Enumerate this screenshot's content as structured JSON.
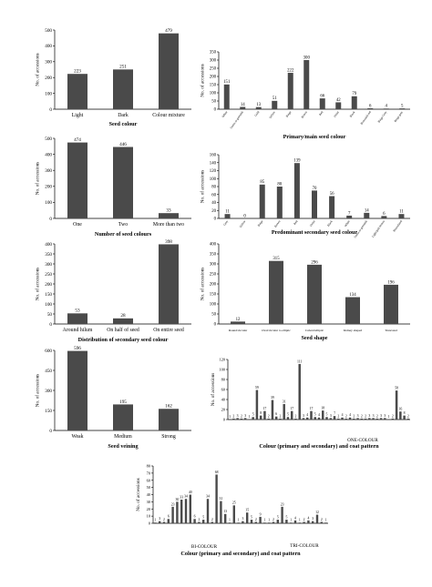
{
  "chart_data": [
    {
      "id": "c1",
      "type": "bar",
      "categories": [
        "Light",
        "Dark",
        "Colour mixture"
      ],
      "values": [
        223,
        251,
        479
      ],
      "xlabel": "Seed colour",
      "ylabel": "No. of accessions",
      "ylim": [
        0,
        500
      ],
      "yticks": [
        0,
        100,
        200,
        300,
        400,
        500
      ],
      "show_labels": true
    },
    {
      "id": "c2",
      "type": "bar",
      "categories": [
        "White",
        "Green or greenish",
        "Gold",
        "Yellow",
        "Beige",
        "Brown",
        "Red",
        "Violet",
        "Black",
        "Brownish red",
        "Beige Grey",
        "Beige grey"
      ],
      "values": [
        151,
        14,
        13,
        51,
        222,
        300,
        66,
        42,
        79,
        6,
        4,
        5
      ],
      "xlabel": "Primary/main seed colour",
      "ylabel": "No. of accessions",
      "ylim": [
        0,
        350
      ],
      "yticks": [
        0,
        50,
        100,
        150,
        200,
        250,
        300,
        350
      ],
      "show_labels": true
    },
    {
      "id": "c3",
      "type": "bar",
      "categories": [
        "One",
        "Two",
        "More than two"
      ],
      "values": [
        474,
        446,
        33
      ],
      "xlabel": "Number of seed colours",
      "ylabel": "No. of accessions",
      "ylim": [
        0,
        500
      ],
      "yticks": [
        0,
        100,
        200,
        300,
        400,
        500
      ],
      "show_labels": true
    },
    {
      "id": "c4",
      "type": "bar",
      "categories": [
        "Grey",
        "Yellow",
        "Beige",
        "Brown",
        "Red",
        "Violet",
        "Black",
        "White",
        "Green or greenish",
        "Light/pale brown",
        "Reticulated"
      ],
      "values": [
        11,
        0,
        85,
        80,
        139,
        70,
        56,
        7,
        14,
        6,
        11
      ],
      "xlabel": "Predominant secondary seed colour",
      "ylabel": "No. of accessions",
      "ylim": [
        0,
        160
      ],
      "yticks": [
        0,
        20,
        40,
        60,
        80,
        100,
        120,
        140,
        160
      ],
      "show_labels": true
    },
    {
      "id": "c5",
      "type": "bar",
      "categories": [
        "Around hilum",
        "On half of seed",
        "On entire seed"
      ],
      "values": [
        53,
        28,
        398
      ],
      "xlabel": "Distribution of secondary seed colour",
      "ylabel": "No. of accessions",
      "ylim": [
        0,
        400
      ],
      "yticks": [
        0,
        50,
        100,
        150,
        200,
        250,
        300,
        350,
        400
      ],
      "show_labels": true
    },
    {
      "id": "c6",
      "type": "bar",
      "categories": [
        "Round/circular",
        "Oval/circular to elliptic",
        "Cuboid/elliptic",
        "Kidney shaped",
        "Truncated"
      ],
      "values": [
        12,
        315,
        296,
        134,
        196
      ],
      "xlabel": "Seed shape",
      "ylabel": "No. of accessions",
      "ylim": [
        0,
        400
      ],
      "yticks": [
        0,
        50,
        100,
        150,
        200,
        250,
        300,
        350,
        400
      ],
      "show_labels": true
    },
    {
      "id": "c7",
      "type": "bar",
      "categories": [
        "Weak",
        "Medium",
        "Strong"
      ],
      "values": [
        596,
        195,
        162
      ],
      "xlabel": "Seed veining",
      "ylabel": "No. of accessions",
      "ylim": [
        0,
        600
      ],
      "yticks": [
        0,
        150,
        300,
        450,
        600
      ],
      "show_labels": true
    },
    {
      "id": "c8",
      "type": "bar",
      "categories": [
        "",
        "",
        "",
        "",
        "",
        "",
        "",
        "",
        "",
        "",
        "",
        "",
        "",
        "",
        "",
        "",
        "",
        "",
        "",
        "",
        "",
        "",
        "",
        "",
        "",
        "",
        "",
        "",
        "",
        "",
        "",
        "",
        "",
        "",
        "",
        "",
        "",
        "",
        "",
        "",
        "",
        "",
        "",
        "",
        "",
        "",
        ""
      ],
      "values": [
        1,
        2,
        3,
        2,
        3,
        1,
        5,
        59,
        8,
        17,
        2,
        39,
        6,
        2,
        31,
        5,
        17,
        2,
        111,
        3,
        4,
        17,
        5,
        4,
        18,
        5,
        3,
        7,
        2,
        4,
        2,
        4,
        2,
        3,
        2,
        2,
        3,
        3,
        2,
        3,
        3,
        1,
        2,
        58,
        16,
        8,
        2
      ],
      "xlabel": "Colour (primary and secondary) and coat pattern",
      "ylabel": "No. of accessions",
      "group_label": "ONE-COLOUR",
      "ylim": [
        0,
        120
      ],
      "yticks": [
        0,
        20,
        40,
        60,
        80,
        100,
        120
      ],
      "show_labels": true
    },
    {
      "id": "c9",
      "type": "bar",
      "categories": [
        "",
        "",
        "",
        "",
        "",
        "",
        "",
        "",
        "",
        "",
        "",
        "",
        "",
        "",
        "",
        "",
        "",
        "",
        "",
        "",
        "",
        "",
        "",
        "",
        "",
        "",
        "",
        "",
        "",
        "",
        "",
        "",
        "",
        "",
        "",
        "",
        "",
        "",
        "",
        ""
      ],
      "values": [
        1,
        3,
        2,
        6,
        23,
        30,
        33,
        34,
        40,
        6,
        2,
        5,
        34,
        2,
        68,
        31,
        13,
        1,
        25,
        1,
        3,
        15,
        5,
        2,
        9,
        1,
        1,
        2,
        5,
        23,
        5,
        1,
        4,
        1,
        2,
        4,
        3,
        12,
        2,
        1
      ],
      "xlabel": "Colour (primary and secondary) and coat pattern",
      "ylabel": "No. of accessions",
      "group_labels": [
        "BI-COLOUR",
        "TRI-COLOUR"
      ],
      "ylim": [
        0,
        80
      ],
      "yticks": [
        0,
        10,
        20,
        30,
        40,
        50,
        60,
        70,
        80
      ],
      "show_labels": true
    }
  ]
}
